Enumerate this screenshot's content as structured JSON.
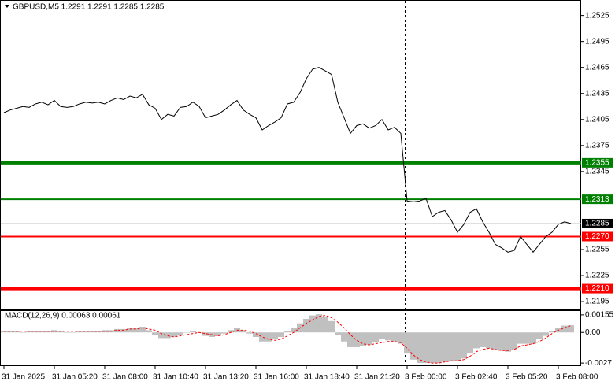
{
  "chart_data": [
    {
      "type": "line",
      "title": "GBPUSD,M5  1.2291 1.2291 1.2285 1.2285",
      "color": "#000000",
      "categories": [
        "31 Jan 2025",
        null,
        null,
        null,
        null,
        null,
        null,
        null,
        "31 Jan 05:20",
        null,
        null,
        null,
        null,
        null,
        null,
        null,
        "31 Jan 08:00",
        null,
        null,
        null,
        null,
        null,
        null,
        null,
        "31 Jan 10:40",
        null,
        null,
        null,
        null,
        null,
        null,
        null,
        "31 Jan 13:20",
        null,
        null,
        null,
        null,
        null,
        null,
        null,
        "31 Jan 16:00",
        null,
        null,
        null,
        null,
        null,
        null,
        null,
        "31 Jan 18:40",
        null,
        null,
        null,
        null,
        null,
        null,
        null,
        "31 Jan 21:20",
        null,
        null,
        null,
        null,
        null,
        null,
        null,
        "3 Feb 00:00",
        null,
        null,
        null,
        null,
        null,
        null,
        null,
        "3 Feb 02:40",
        null,
        null,
        null,
        null,
        null,
        null,
        null,
        "3 Feb 05:20",
        null,
        null,
        null,
        null,
        null,
        null,
        null,
        "3 Feb 08:00",
        null,
        null
      ],
      "values": [
        1.2413,
        1.2416,
        1.2418,
        1.242,
        1.2419,
        1.2423,
        1.2425,
        1.2422,
        1.2427,
        1.242,
        1.2419,
        1.242,
        1.2423,
        1.2425,
        1.2424,
        1.2425,
        1.2423,
        1.2427,
        1.243,
        1.2428,
        1.2432,
        1.243,
        1.2434,
        1.2422,
        1.2418,
        1.2405,
        1.2411,
        1.2409,
        1.2419,
        1.242,
        1.2425,
        1.242,
        1.2407,
        1.2409,
        1.2411,
        1.2416,
        1.2422,
        1.2427,
        1.2416,
        1.2411,
        1.2407,
        1.2393,
        1.2398,
        1.2402,
        1.2407,
        1.2423,
        1.2425,
        1.2436,
        1.2452,
        1.2463,
        1.2465,
        1.2461,
        1.2457,
        1.2425,
        1.2407,
        1.2389,
        1.2398,
        1.24,
        1.2395,
        1.2398,
        1.2405,
        1.2393,
        1.2396,
        1.2389,
        1.2311,
        1.231,
        1.2311,
        1.2314,
        1.2293,
        1.2298,
        1.23,
        1.2289,
        1.2275,
        1.2284,
        1.2298,
        1.2302,
        1.2287,
        1.2275,
        1.2261,
        1.2257,
        1.2252,
        1.2254,
        1.227,
        1.2261,
        1.2252,
        1.2261,
        1.227,
        1.2275,
        1.2284,
        1.2287,
        1.2285
      ],
      "ylim": [
        1.2186,
        1.2541
      ],
      "yticks": [
        1.2525,
        1.2495,
        1.2465,
        1.2435,
        1.2405,
        1.2375,
        1.2345,
        1.2255,
        1.2225,
        1.2195
      ],
      "levels": [
        {
          "value": 1.2355,
          "color": "#008000",
          "thick": true
        },
        {
          "value": 1.2313,
          "color": "#008000",
          "thick": false
        },
        {
          "value": 1.227,
          "label": "1.2270",
          "color": "#ff0000",
          "thick": false
        },
        {
          "value": 1.221,
          "label": "1.2210",
          "color": "#ff0000",
          "thick": true
        }
      ],
      "last_price": 1.2285
    },
    {
      "type": "macd",
      "title": "MACD(12,26,9) 0.00063 0.00061",
      "series": [
        {
          "kind": "bar",
          "color": "#c0c0c0",
          "values": [
            0.0001,
            0.0001,
            0.0001,
            0.0,
            0.0001,
            0.0001,
            0.0001,
            0.0001,
            0.0002,
            0.0001,
            0.0,
            0.0,
            0.0001,
            0.0001,
            0.0001,
            0.0001,
            0.0002,
            0.0002,
            0.0003,
            0.0003,
            0.0004,
            0.0004,
            0.0005,
            0.0002,
            -0.0002,
            -0.0005,
            -0.0005,
            -0.0004,
            -0.0002,
            0.0,
            0.0001,
            0.0,
            -0.0003,
            -0.0004,
            -0.0003,
            -0.0001,
            0.0002,
            0.0004,
            0.0002,
            -0.0001,
            -0.0004,
            -0.0008,
            -0.0008,
            -0.0006,
            -0.0004,
            0.0001,
            0.0004,
            0.0008,
            0.0012,
            0.0015,
            0.0016,
            0.0014,
            0.001,
            -0.0002,
            -0.0008,
            -0.0013,
            -0.0013,
            -0.0012,
            -0.0011,
            -0.0009,
            -0.0006,
            -0.0007,
            -0.0008,
            -0.001,
            -0.0018,
            -0.0024,
            -0.0027,
            -0.0027,
            -0.0027,
            -0.0027,
            -0.0026,
            -0.0025,
            -0.0025,
            -0.0023,
            -0.0018,
            -0.0014,
            -0.0013,
            -0.0014,
            -0.0015,
            -0.0016,
            -0.0017,
            -0.0015,
            -0.001,
            -0.001,
            -0.001,
            -0.0006,
            -0.0003,
            0.0001,
            0.0004,
            0.0006,
            0.00063
          ]
        },
        {
          "kind": "line",
          "color": "#ff0000",
          "values": [
            0.0001,
            0.0001,
            0.0001,
            0.0001,
            0.0001,
            0.0001,
            0.0001,
            0.0001,
            0.0001,
            0.0001,
            0.0001,
            0.0001,
            0.0001,
            0.0001,
            0.0001,
            0.0001,
            0.0001,
            0.0001,
            0.0002,
            0.0002,
            0.0003,
            0.0003,
            0.0004,
            0.0003,
            0.0002,
            -0.0001,
            -0.0003,
            -0.0004,
            -0.0003,
            -0.0002,
            -0.0001,
            0.0,
            -0.0001,
            -0.0002,
            -0.0003,
            -0.0002,
            0.0,
            0.0002,
            0.0002,
            0.0001,
            -0.0001,
            -0.0004,
            -0.0006,
            -0.0007,
            -0.0006,
            -0.0003,
            0.0,
            0.0004,
            0.0008,
            0.0011,
            0.0014,
            0.0015,
            0.0013,
            0.0009,
            0.0004,
            -0.0002,
            -0.0007,
            -0.001,
            -0.0011,
            -0.001,
            -0.0009,
            -0.0008,
            -0.0008,
            -0.0009,
            -0.0014,
            -0.002,
            -0.0024,
            -0.0026,
            -0.0027,
            -0.0027,
            -0.0026,
            -0.0025,
            -0.0025,
            -0.0024,
            -0.0021,
            -0.0017,
            -0.0015,
            -0.0014,
            -0.0015,
            -0.0016,
            -0.0016,
            -0.0015,
            -0.0012,
            -0.0011,
            -0.001,
            -0.0008,
            -0.0005,
            -0.0001,
            0.0002,
            0.0004,
            0.00061
          ]
        }
      ],
      "ylim": [
        -0.0029,
        0.00189
      ],
      "yticks": [
        0.00155,
        {
          "value": 0,
          "label": "0.00"
        },
        -0.0027
      ]
    }
  ]
}
